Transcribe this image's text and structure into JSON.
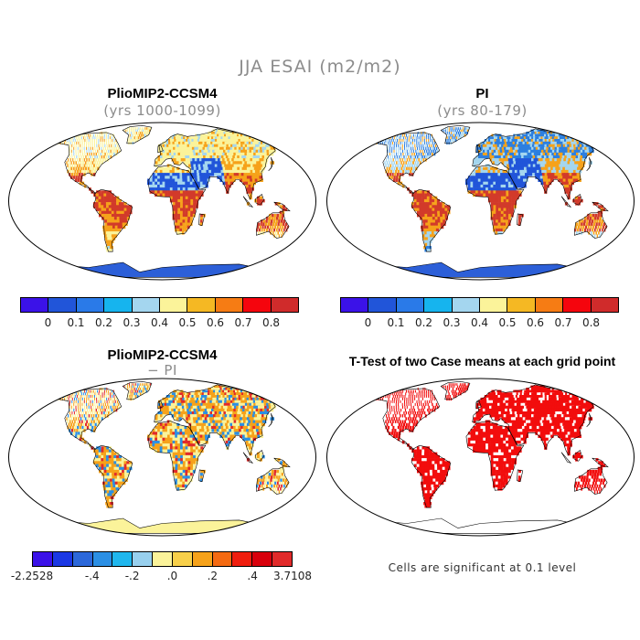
{
  "figure": {
    "title": "JJA ESAI (m2/m2)"
  },
  "panels": [
    {
      "title": "PlioMIP2-CCSM4",
      "subtitle": "(yrs 1000-1099)"
    },
    {
      "title": "PI",
      "subtitle": "(yrs 80-179)"
    },
    {
      "title": "PlioMIP2-CCSM4",
      "subtitle": "− PI"
    },
    {
      "title": "T-Test of two Case means at each grid point",
      "subtitle": ""
    }
  ],
  "colorbar_top": {
    "colors": [
      "#3b12e8",
      "#2155d9",
      "#2a7ae8",
      "#16b4ee",
      "#a4d6ef",
      "#fbf39a",
      "#f5b823",
      "#f67c14",
      "#f5050d",
      "#d02b2b"
    ],
    "labels": [
      "0",
      "0.1",
      "0.2",
      "0.3",
      "0.4",
      "0.5",
      "0.6",
      "0.7",
      "0.8"
    ]
  },
  "colorbar_diff": {
    "colors": [
      "#3b12e8",
      "#1b38e4",
      "#2c68da",
      "#2b8fe4",
      "#20b7ee",
      "#98d0ee",
      "#fbf39a",
      "#f8d04a",
      "#f6a21a",
      "#f46a12",
      "#f01e0e",
      "#d8000c",
      "#e12a2a"
    ],
    "labels": [
      "-2.2528",
      "-.4",
      "-.2",
      ".0",
      ".2",
      ".4",
      "3.7108"
    ]
  },
  "significance_note": "Cells are significant at 0.1 level",
  "map_colors": {
    "outline": "#000000",
    "pliomip": {
      "tropics": "#d23a2a",
      "mid": "#f6a21a",
      "north": "#fbf39a",
      "cool": "#a4d6ef",
      "desert": "#2155d9",
      "antarctica": "#2c5fd8"
    },
    "pi": {
      "tropics": "#d23a2a",
      "mid": "#f6a21a",
      "north": "#2c7fe0",
      "cool": "#a4d6ef",
      "desert": "#2155d9",
      "antarctica": "#2c5fd8"
    },
    "diff": {
      "pos": "#f6a21a",
      "neg": "#2b8fe4",
      "mix": "#fbf39a",
      "antarctica": "#fbf39a"
    },
    "ttest": {
      "sig": "#f20d0d"
    }
  }
}
